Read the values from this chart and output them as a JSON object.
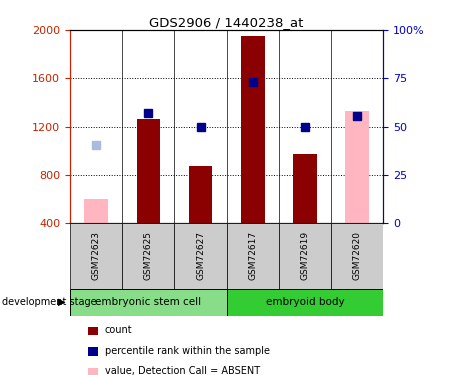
{
  "title": "GDS2906 / 1440238_at",
  "samples": [
    "GSM72623",
    "GSM72625",
    "GSM72627",
    "GSM72617",
    "GSM72619",
    "GSM72620"
  ],
  "group_labels": [
    "embryonic stem cell",
    "embryoid body"
  ],
  "count_values": [
    null,
    1260,
    870,
    1950,
    970,
    null
  ],
  "count_color": "#8B0000",
  "absent_value_values": [
    600,
    null,
    null,
    null,
    null,
    1330
  ],
  "absent_value_color": "#FFB6C1",
  "rank_values": [
    null,
    1310,
    1200,
    1570,
    1200,
    1290
  ],
  "rank_color": "#00008B",
  "absent_rank_values": [
    1050,
    null,
    null,
    null,
    null,
    null
  ],
  "absent_rank_color": "#AABBDD",
  "ylim_left": [
    400,
    2000
  ],
  "ylim_right": [
    0,
    100
  ],
  "yticks_left": [
    400,
    800,
    1200,
    1600,
    2000
  ],
  "yticks_right": [
    0,
    25,
    50,
    75,
    100
  ],
  "bar_width": 0.45,
  "marker_size": 6,
  "left_axis_color": "#CC2200",
  "right_axis_color": "#0000CC",
  "grid_color": "#000000",
  "sample_box_color": "#CCCCCC",
  "group1_color": "#88DD88",
  "group2_color": "#33CC33"
}
